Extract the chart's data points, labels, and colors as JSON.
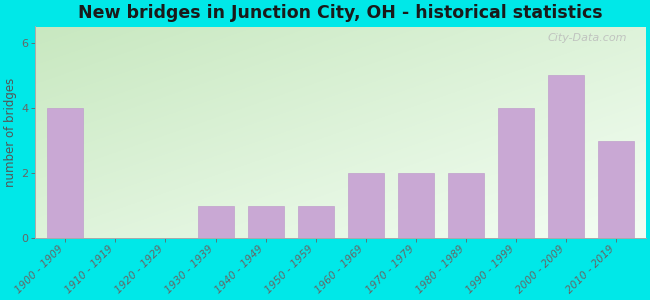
{
  "categories": [
    "1900 - 1909",
    "1910 - 1919",
    "1920 - 1929",
    "1930 - 1939",
    "1940 - 1949",
    "1950 - 1959",
    "1960 - 1969",
    "1970 - 1979",
    "1980 - 1989",
    "1990 - 1999",
    "2000 - 2009",
    "2010 - 2019"
  ],
  "values": [
    4,
    0,
    0,
    1,
    1,
    1,
    2,
    2,
    2,
    4,
    5,
    3
  ],
  "bar_color": "#c9a8d4",
  "bar_edge_color": "#c0a0cc",
  "background_color": "#00e8e8",
  "plot_bg_topleft": "#c8e8c0",
  "plot_bg_bottomright": "#f0fdf0",
  "title": "New bridges in Junction City, OH - historical statistics",
  "title_fontsize": 12.5,
  "title_color": "#1a1a1a",
  "ylabel": "number of bridges",
  "ylabel_fontsize": 8.5,
  "ylabel_color": "#555555",
  "tick_label_fontsize": 7.5,
  "tick_label_color": "#666666",
  "ytick_label_fontsize": 8,
  "yticks": [
    0,
    2,
    4,
    6
  ],
  "ylim_max": 6.5,
  "watermark_text": "City-Data.com",
  "watermark_color": "#bbbbbb",
  "watermark_fontsize": 8
}
